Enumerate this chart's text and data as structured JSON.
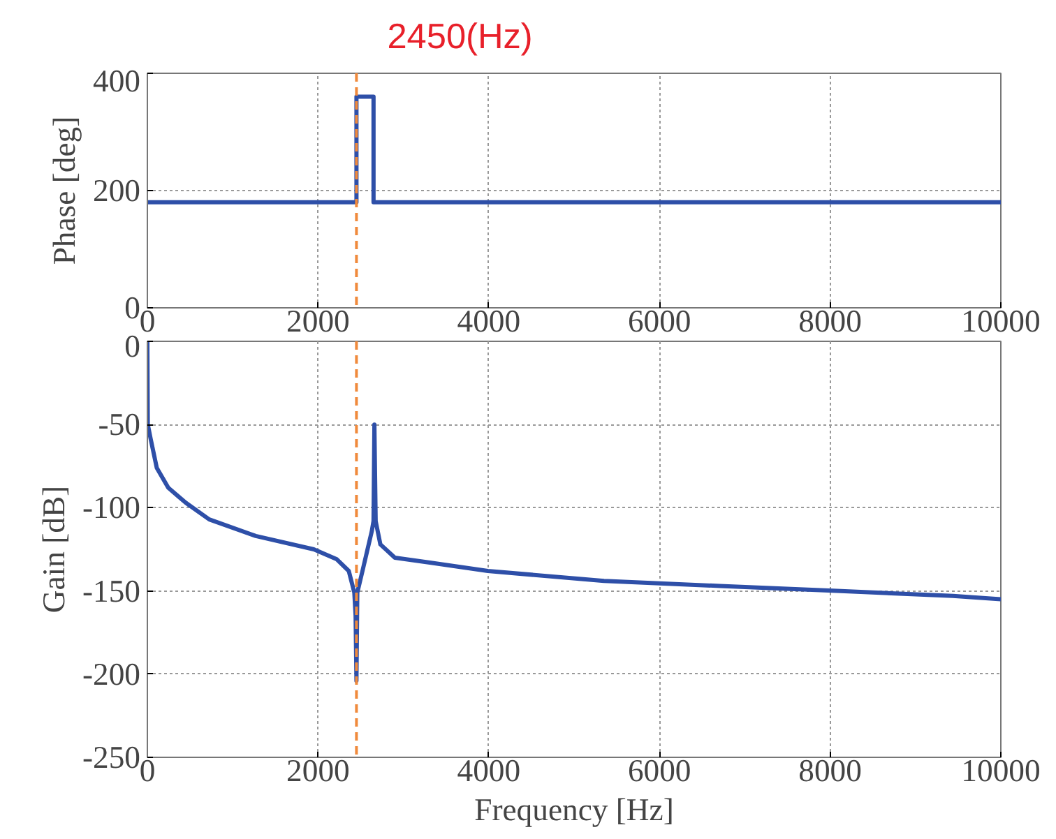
{
  "chart_data": [
    {
      "type": "line",
      "ylabel": "Phase [deg]",
      "xlim": [
        0,
        10000
      ],
      "xticks": [
        0,
        2000,
        4000,
        6000,
        8000,
        10000
      ],
      "ylim": [
        0,
        400
      ],
      "yticks": [
        0,
        200,
        400
      ],
      "grid": true,
      "annotations": [
        {
          "text": "2450(Hz)",
          "x": 2450,
          "y": 400
        }
      ],
      "ref_lines": [
        {
          "axis": "x",
          "value": 2450,
          "label": null,
          "color": "#f08a3c",
          "line_style": "dashed"
        }
      ],
      "series": [
        {
          "color": "#2e4fa8",
          "x": [
            0,
            2450,
            2450,
            2650,
            2650,
            10000
          ],
          "values": [
            180,
            180,
            360,
            360,
            180,
            180
          ]
        }
      ]
    },
    {
      "type": "line",
      "xlabel": "Frequency [Hz]",
      "ylabel": "Gain [dB]",
      "xlim": [
        0,
        10000
      ],
      "xticks": [
        0,
        2000,
        4000,
        6000,
        8000,
        10000
      ],
      "ylim": [
        -250,
        0
      ],
      "yticks": [
        -250,
        -200,
        -150,
        -100,
        -50,
        0
      ],
      "grid": true,
      "ref_lines": [
        {
          "axis": "x",
          "value": 2450,
          "label": null,
          "color": "#f08a3c",
          "line_style": "dashed"
        }
      ],
      "series": [
        {
          "color": "#2e4fa8",
          "x": [
            0,
            5,
            40,
            110,
            245,
            450,
            725,
            1270,
            1950,
            2220,
            2360,
            2425,
            2440,
            2450,
            2460,
            2525,
            2630,
            2650,
            2660,
            2675,
            2730,
            2900,
            3310,
            3990,
            5350,
            6710,
            8080,
            9440,
            10000
          ],
          "values": [
            0,
            -50,
            -59,
            -76,
            -88,
            -97,
            -107,
            -117,
            -125,
            -131,
            -138,
            -151,
            -165,
            -204,
            -151,
            -137,
            -114,
            -108,
            -50,
            -108,
            -122,
            -130,
            -133,
            -138,
            -144,
            -147,
            -150,
            -153,
            -155
          ]
        }
      ]
    }
  ]
}
